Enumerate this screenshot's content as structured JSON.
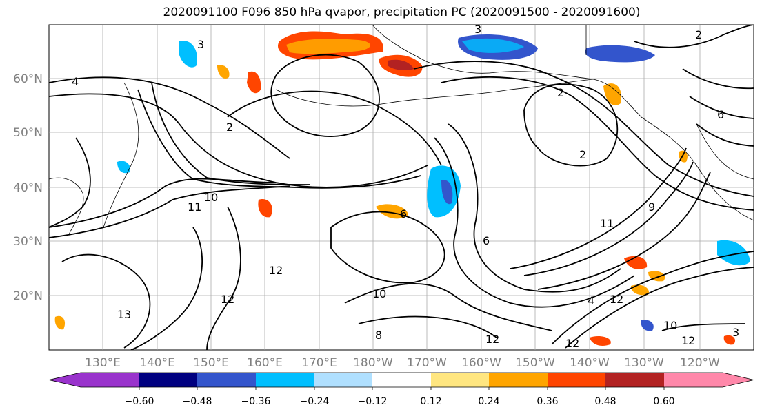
{
  "title": "2020091100 F096 850 hPa qvapor, precipitation PC (2020091500 - 2020091600)",
  "map": {
    "lat_labels": [
      "60°N",
      "50°N",
      "40°N",
      "30°N",
      "20°N"
    ],
    "lon_labels": [
      "130°E",
      "140°E",
      "150°E",
      "160°E",
      "170°E",
      "180°W",
      "170°W",
      "160°W",
      "150°W",
      "140°W",
      "130°W",
      "120°W"
    ],
    "label_color": "#808080",
    "contour_labels": [
      "3",
      "4",
      "2",
      "6",
      "11",
      "10",
      "12",
      "6",
      "13",
      "12",
      "10",
      "2",
      "6",
      "11",
      "9",
      "8",
      "12",
      "12",
      "4",
      "12",
      "10",
      "12",
      "3",
      "2",
      "2",
      "3"
    ]
  },
  "colorbar": {
    "colors": [
      "#9933cc",
      "#000080",
      "#3355cc",
      "#00bfff",
      "#b0e0ff",
      "#ffffff",
      "#ffe680",
      "#ffa500",
      "#ff4500",
      "#b22222",
      "#ff88aa"
    ],
    "tick_labels": [
      "−0.60",
      "−0.48",
      "−0.36",
      "−0.24",
      "−0.12",
      "0.12",
      "0.24",
      "0.36",
      "0.48",
      "0.60"
    ]
  }
}
